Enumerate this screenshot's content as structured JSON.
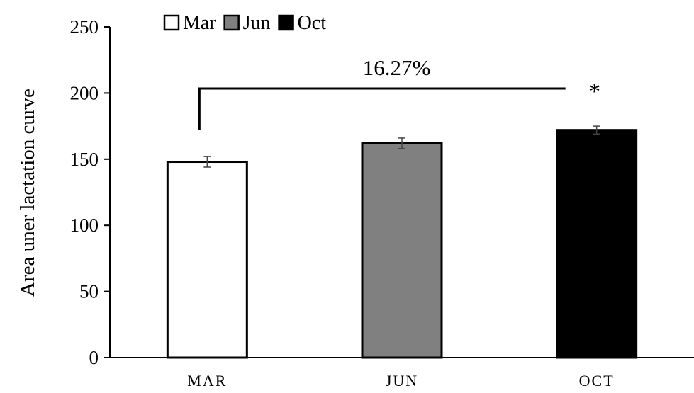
{
  "chart_data": {
    "type": "bar",
    "categories": [
      "MAR",
      "JUN",
      "OCT"
    ],
    "series": [
      {
        "name": "",
        "values": [
          148,
          162,
          172
        ],
        "errors": [
          4,
          4,
          3
        ],
        "colors": [
          "#ffffff",
          "#808080",
          "#000000"
        ]
      }
    ],
    "title": "",
    "xlabel": "",
    "ylabel": "Area uner lactation curve",
    "ylim": [
      0,
      250
    ],
    "yticks": [
      "0",
      "50",
      "100",
      "150",
      "200",
      "250"
    ],
    "grid": false,
    "legend": {
      "placement": "top-left",
      "entries": [
        {
          "label": "Mar",
          "color": "#ffffff"
        },
        {
          "label": "Jun",
          "color": "#808080"
        },
        {
          "label": "Oct",
          "color": "#000000"
        }
      ]
    },
    "annotations": {
      "bracket_from": "MAR",
      "bracket_to": "OCT",
      "percent_label": "16.27%",
      "significance": "*"
    }
  }
}
